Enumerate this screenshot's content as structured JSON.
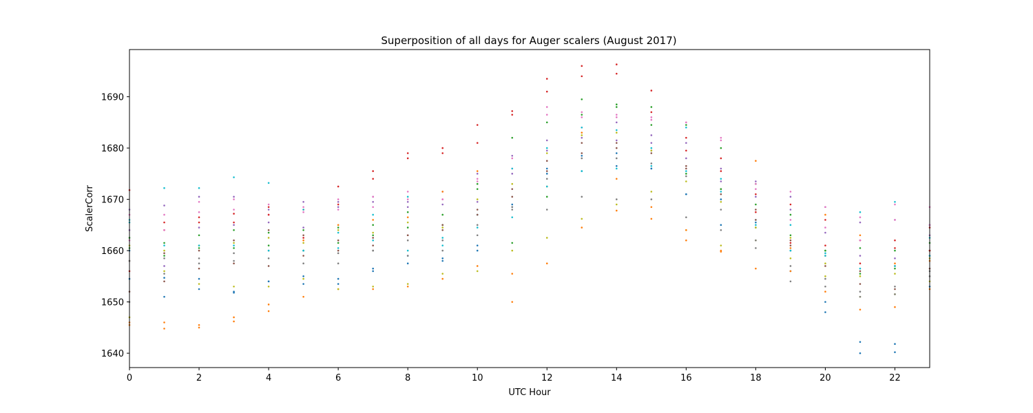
{
  "chart_data": {
    "type": "scatter",
    "title": "Superposition of all days for Auger scalers (August 2017)",
    "xlabel": "UTC Hour",
    "ylabel": "ScalerCorr",
    "xlim": [
      0,
      23
    ],
    "ylim": [
      1637.2,
      1699.2
    ],
    "xticks": [
      0,
      2,
      4,
      6,
      8,
      10,
      12,
      14,
      16,
      18,
      20,
      22
    ],
    "yticks": [
      1640,
      1650,
      1660,
      1670,
      1680,
      1690
    ],
    "grid": false,
    "legend": "none",
    "palette": [
      "#1f77b4",
      "#ff7f0e",
      "#2ca02c",
      "#d62728",
      "#9467bd",
      "#8c564b",
      "#e377c2",
      "#7f7f7f",
      "#bcbd22",
      "#17becf"
    ],
    "x": [
      0,
      1,
      2,
      3,
      4,
      5,
      6,
      7,
      8,
      9,
      10,
      11,
      12,
      13,
      14,
      15,
      16,
      17,
      18,
      19,
      20,
      21,
      22,
      23
    ],
    "series": [
      {
        "values": [
          1654.5,
          1654.7,
          1652.5,
          1651.8,
          1654.0,
          1653.5,
          1653.5,
          1656.5,
          1659.0,
          1658.5,
          1661.0,
          1668.5,
          1675.0,
          1678.5,
          1679.0,
          1676.0,
          1671.0,
          1665.0,
          1665.5,
          1656.0,
          1650.0,
          1640.0,
          1640.2,
          1653.0
        ]
      },
      {
        "values": [
          1645.5,
          1644.8,
          1645.0,
          1646.2,
          1648.2,
          1651.0,
          1652.5,
          1652.5,
          1653.0,
          1654.5,
          1657.0,
          1650.0,
          1657.5,
          1664.5,
          1667.8,
          1666.2,
          1662.0,
          1659.8,
          1656.5,
          1656.0,
          1652.0,
          1648.5,
          1649.0,
          1652.5
        ]
      },
      {
        "values": [
          1662.5,
          1661.5,
          1663.0,
          1664.0,
          1663.5,
          1664.0,
          1664.5,
          1665.0,
          1667.5,
          1665.0,
          1673.0,
          1682.0,
          1685.0,
          1689.5,
          1688.5,
          1688.0,
          1684.5,
          1680.0,
          1673.0,
          1667.0,
          1660.0,
          1655.5,
          1656.5,
          1660.0
        ]
      },
      {
        "values": [
          1671.8,
          1664.0,
          1666.5,
          1667.2,
          1668.5,
          1668.0,
          1672.5,
          1675.5,
          1679.0,
          1680.0,
          1684.5,
          1687.2,
          1693.5,
          1696.0,
          1696.3,
          1691.2,
          1682.0,
          1675.5,
          1671.0,
          1669.0,
          1666.0,
          1662.0,
          1662.0,
          1664.5
        ]
      },
      {
        "values": [
          1668.0,
          1668.8,
          1670.5,
          1670.5,
          1668.0,
          1669.5,
          1669.5,
          1670.5,
          1669.5,
          1671.5,
          1675.0,
          1678.5,
          1681.5,
          1684.0,
          1685.0,
          1682.5,
          1681.0,
          1676.0,
          1673.5,
          1670.5,
          1668.5,
          1665.5,
          1666.0,
          1665.0
        ]
      },
      {
        "values": [
          1658.0,
          1659.5,
          1660.0,
          1662.0,
          1664.0,
          1663.0,
          1662.0,
          1662.5,
          1663.0,
          1664.0,
          1668.0,
          1672.0,
          1677.5,
          1681.0,
          1681.0,
          1679.0,
          1676.0,
          1672.0,
          1668.0,
          1662.0,
          1659.0,
          1656.0,
          1657.0,
          1660.0
        ]
      },
      {
        "values": [
          1662.0,
          1664.0,
          1669.5,
          1670.0,
          1667.0,
          1668.5,
          1670.0,
          1670.5,
          1671.5,
          1670.0,
          1674.0,
          1676.0,
          1686.5,
          1686.0,
          1686.5,
          1685.5,
          1685.0,
          1682.0,
          1672.0,
          1666.0,
          1664.5,
          1662.0,
          1666.0,
          1668.5
        ]
      },
      {
        "values": [
          1650.0,
          1655.5,
          1657.5,
          1658.0,
          1658.5,
          1657.5,
          1657.5,
          1660.0,
          1662.0,
          1662.0,
          1665.0,
          1668.0,
          1668.0,
          1670.5,
          1670.0,
          1670.0,
          1666.5,
          1664.0,
          1660.5,
          1654.0,
          1653.0,
          1652.0,
          1653.0,
          1656.0
        ]
      },
      {
        "values": [
          1647.0,
          1656.0,
          1653.5,
          1653.0,
          1653.0,
          1654.5,
          1652.5,
          1653.0,
          1653.5,
          1655.5,
          1656.0,
          1660.0,
          1662.5,
          1666.2,
          1669.0,
          1671.5,
          1664.0,
          1661.0,
          1662.0,
          1658.5,
          1655.0,
          1651.0,
          1651.5,
          1654.0
        ]
      },
      {
        "values": [
          1665.5,
          1672.2,
          1672.2,
          1674.3,
          1673.2,
          1668.0,
          1663.5,
          1667.0,
          1670.5,
          1662.5,
          1667.0,
          1676.0,
          1680.0,
          1684.0,
          1683.5,
          1680.0,
          1684.0,
          1674.0,
          1666.0,
          1665.0,
          1659.0,
          1667.5,
          1669.5,
          1662.5
        ]
      },
      {
        "values": [
          1660.0,
          1651.0,
          1654.5,
          1652.0,
          1654.0,
          1655.0,
          1654.5,
          1656.0,
          1657.5,
          1658.0,
          1660.0,
          1669.0,
          1676.0,
          1675.5,
          1676.5,
          1676.0,
          1671.0,
          1670.0,
          1664.5,
          1660.0,
          1648.0,
          1642.2,
          1641.8,
          1659.0
        ]
      },
      {
        "values": [
          1646.0,
          1646.0,
          1645.5,
          1647.0,
          1649.5,
          1662.0,
          1665.0,
          1666.0,
          1666.5,
          1671.5,
          1675.5,
          1655.5,
          1672.5,
          1683.0,
          1674.0,
          1668.5,
          1664.0,
          1660.0,
          1677.5,
          1660.5,
          1667.0,
          1663.0,
          1657.5,
          1658.0
        ]
      },
      {
        "values": [
          1660.5,
          1659.0,
          1660.5,
          1660.5,
          1661.0,
          1660.0,
          1661.5,
          1663.0,
          1664.5,
          1667.0,
          1672.0,
          1661.5,
          1670.5,
          1686.5,
          1688.0,
          1684.5,
          1675.0,
          1672.0,
          1669.0,
          1663.0,
          1660.0,
          1660.5,
          1660.0,
          1661.5
        ]
      },
      {
        "values": [
          1656.0,
          1665.5,
          1665.5,
          1665.5,
          1667.0,
          1662.5,
          1669.0,
          1674.0,
          1678.0,
          1679.0,
          1681.0,
          1686.5,
          1691.0,
          1694.0,
          1694.5,
          1687.0,
          1679.5,
          1678.0,
          1667.5,
          1661.5,
          1661.0,
          1657.5,
          1660.5,
          1660.0
        ]
      },
      {
        "values": [
          1664.0,
          1657.0,
          1664.5,
          1665.0,
          1665.5,
          1664.5,
          1668.5,
          1669.5,
          1668.5,
          1669.0,
          1669.5,
          1675.0,
          1679.5,
          1682.0,
          1681.5,
          1681.0,
          1678.0,
          1673.5,
          1670.5,
          1668.0,
          1663.5,
          1659.0,
          1658.5,
          1663.0
        ]
      },
      {
        "values": [
          1652.0,
          1654.0,
          1656.5,
          1657.5,
          1657.0,
          1659.0,
          1660.0,
          1661.0,
          1663.0,
          1665.0,
          1667.0,
          1670.5,
          1675.5,
          1679.0,
          1680.0,
          1679.5,
          1676.5,
          1671.0,
          1666.0,
          1661.0,
          1657.0,
          1653.5,
          1652.5,
          1656.5
        ]
      },
      {
        "values": [
          1667.0,
          1667.0,
          1667.5,
          1668.0,
          1669.0,
          1667.5,
          1668.0,
          1668.5,
          1670.0,
          1670.0,
          1673.5,
          1678.0,
          1688.0,
          1687.0,
          1686.0,
          1686.0,
          1685.0,
          1681.5,
          1673.0,
          1671.5,
          1668.5,
          1666.5,
          1669.0,
          1665.0
        ]
      },
      {
        "values": [
          1658.0,
          1658.5,
          1658.5,
          1659.5,
          1660.0,
          1660.0,
          1659.5,
          1660.0,
          1659.0,
          1660.0,
          1663.0,
          1668.5,
          1674.0,
          1678.0,
          1678.0,
          1677.0,
          1674.5,
          1668.0,
          1662.0,
          1657.0,
          1654.5,
          1651.0,
          1651.5,
          1655.0
        ]
      },
      {
        "values": [
          1661.0,
          1660.0,
          1661.0,
          1661.5,
          1662.5,
          1661.5,
          1664.0,
          1663.5,
          1665.5,
          1664.5,
          1670.0,
          1673.0,
          1679.0,
          1682.5,
          1683.0,
          1679.5,
          1673.5,
          1669.5,
          1664.5,
          1662.5,
          1657.5,
          1655.0,
          1655.5,
          1658.5
        ]
      },
      {
        "values": [
          1666.0,
          1661.0,
          1661.0,
          1661.0,
          1660.0,
          1660.0,
          1660.5,
          1662.0,
          1660.0,
          1661.0,
          1664.5,
          1666.5,
          1672.5,
          1675.5,
          1676.0,
          1676.5,
          1675.5,
          1671.5,
          1665.0,
          1660.0,
          1659.5,
          1656.5,
          1657.0,
          1659.0
        ]
      }
    ]
  }
}
